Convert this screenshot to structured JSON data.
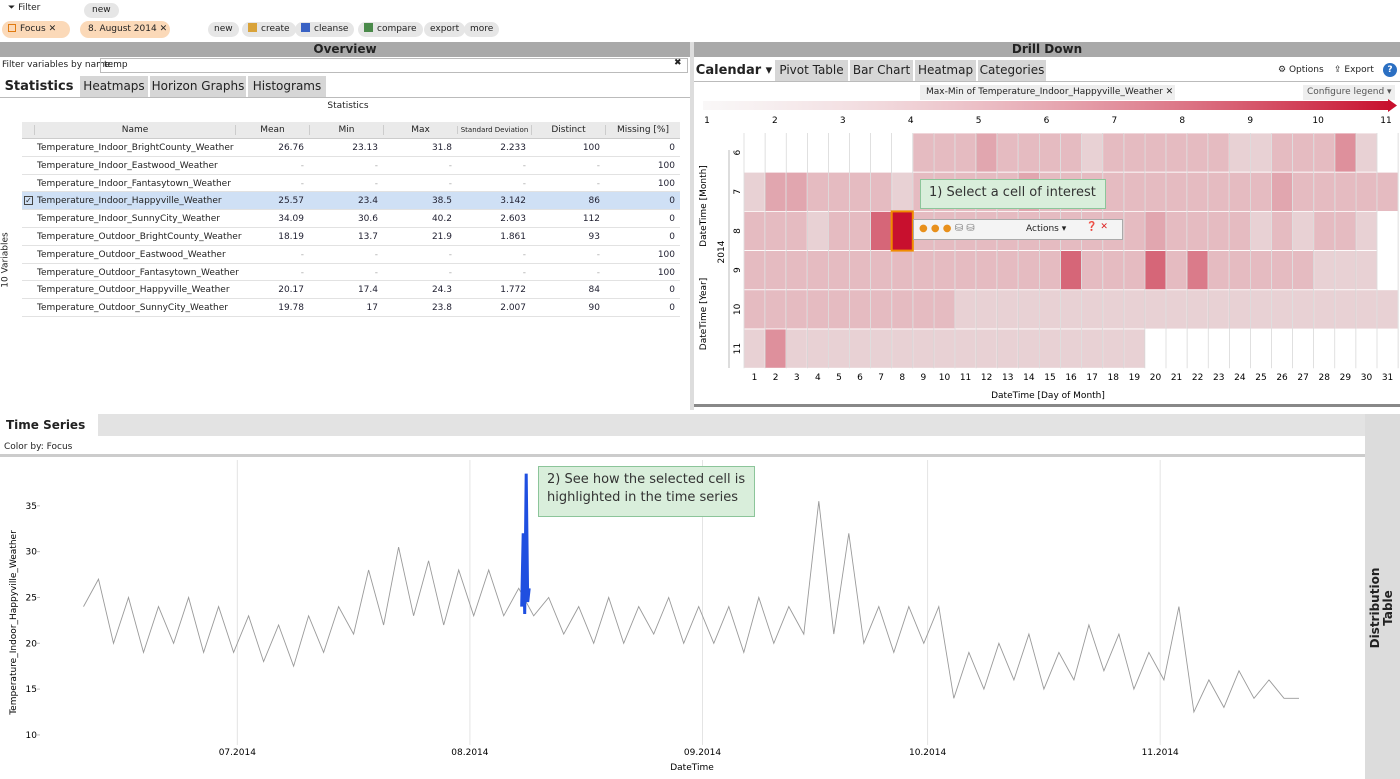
{
  "toolbar": {
    "filter": "Filter",
    "filter_new": "new",
    "chips": [
      "Focus",
      "8. August 2014"
    ],
    "buttons": [
      "new",
      "create",
      "cleanse",
      "compare",
      "export",
      "more"
    ]
  },
  "overview": {
    "title": "Overview",
    "filter_label": "Filter variables by name:",
    "filter_value": "temp",
    "tabs": [
      "Statistics",
      "Heatmaps",
      "Horizon Graphs",
      "Histograms"
    ],
    "table_title": "Statistics",
    "side_label": "10 Variables",
    "columns": [
      "Name",
      "Mean",
      "Min",
      "Max",
      "Standard Deviation",
      "Distinct",
      "Missing [%]"
    ],
    "selected_row": 3,
    "rows": [
      [
        "Temperature_Indoor_BrightCounty_Weather",
        26.76,
        23.13,
        31.8,
        2.233,
        100,
        0
      ],
      [
        "Temperature_Indoor_Eastwood_Weather",
        "-",
        "-",
        "-",
        "-",
        "-",
        100
      ],
      [
        "Temperature_Indoor_Fantasytown_Weather",
        "-",
        "-",
        "-",
        "-",
        "-",
        100
      ],
      [
        "Temperature_Indoor_Happyville_Weather",
        25.57,
        23.4,
        38.5,
        3.142,
        86,
        0
      ],
      [
        "Temperature_Indoor_SunnyCity_Weather",
        34.09,
        30.6,
        40.2,
        2.603,
        112,
        0
      ],
      [
        "Temperature_Outdoor_BrightCounty_Weather",
        18.19,
        13.7,
        21.9,
        1.861,
        93,
        0
      ],
      [
        "Temperature_Outdoor_Eastwood_Weather",
        "-",
        "-",
        "-",
        "-",
        "-",
        100
      ],
      [
        "Temperature_Outdoor_Fantasytown_Weather",
        "-",
        "-",
        "-",
        "-",
        "-",
        100
      ],
      [
        "Temperature_Outdoor_Happyville_Weather",
        20.17,
        17.4,
        24.3,
        1.772,
        84,
        0
      ],
      [
        "Temperature_Outdoor_SunnyCity_Weather",
        19.78,
        17,
        23.8,
        2.007,
        90,
        0
      ]
    ]
  },
  "drilldown": {
    "title": "Drill Down",
    "tabs": [
      "Calendar",
      "Pivot Table",
      "Bar Chart",
      "Heatmap",
      "Categories"
    ],
    "options": "Options",
    "export": "Export",
    "legend": {
      "title": "Max-Min of Temperature_Indoor_Happyville_Weather",
      "configure": "Configure legend",
      "range": [
        1,
        11
      ],
      "ticks": [
        1,
        2,
        3,
        4,
        5,
        6,
        7,
        8,
        9,
        10,
        11
      ],
      "colors": [
        "#ece6e6",
        "#c8102e"
      ]
    },
    "calendar": {
      "year_axis": "DateTime [Year]",
      "month_axis": "DateTime [Month]",
      "year": "2014",
      "months": [
        6,
        7,
        8,
        9,
        10,
        11
      ],
      "days": [
        1,
        2,
        3,
        4,
        5,
        6,
        7,
        8,
        9,
        10,
        11,
        12,
        13,
        14,
        15,
        16,
        17,
        18,
        19,
        20,
        21,
        22,
        23,
        24,
        25,
        26,
        27,
        28,
        29,
        30,
        31
      ],
      "x_axis": "DateTime [Day of Month]",
      "selected_cell": [
        2,
        7
      ],
      "values": [
        [
          null,
          null,
          null,
          null,
          null,
          null,
          null,
          null,
          3,
          3,
          3,
          4,
          3,
          3,
          3,
          3,
          2,
          3,
          3,
          3,
          3,
          3,
          3,
          2,
          2,
          3,
          3,
          3,
          5,
          2,
          null
        ],
        [
          2,
          4,
          4,
          3,
          3,
          3,
          3,
          2,
          3,
          3,
          3,
          3,
          3,
          4,
          3,
          3,
          3,
          3,
          3,
          3,
          3,
          3,
          3,
          3,
          3,
          4,
          3,
          3,
          3,
          3,
          3
        ],
        [
          3,
          3,
          3,
          2,
          3,
          3,
          7,
          11,
          3,
          3,
          3,
          3,
          3,
          3,
          3,
          3,
          3,
          3,
          3,
          4,
          3,
          3,
          3,
          3,
          2,
          3,
          2,
          3,
          3,
          2,
          null
        ],
        [
          3,
          3,
          3,
          3,
          3,
          3,
          3,
          3,
          3,
          3,
          3,
          3,
          3,
          3,
          3,
          7,
          3,
          3,
          3,
          7,
          3,
          6,
          3,
          3,
          3,
          3,
          3,
          2,
          2,
          2,
          null
        ],
        [
          3,
          3,
          3,
          3,
          3,
          3,
          3,
          3,
          3,
          3,
          2,
          2,
          2,
          2,
          2,
          2,
          2,
          2,
          2,
          2,
          2,
          2,
          2,
          2,
          2,
          2,
          2,
          2,
          2,
          2,
          2
        ],
        [
          2,
          5,
          2,
          2,
          2,
          2,
          2,
          2,
          2,
          2,
          2,
          2,
          2,
          2,
          2,
          2,
          2,
          2,
          2,
          null,
          null,
          null,
          null,
          null,
          null,
          null,
          null,
          null,
          null,
          null,
          null
        ]
      ]
    },
    "callout": "1) Select a cell of interest",
    "actions": "Actions"
  },
  "time_series": {
    "type": "line",
    "title": "Time Series",
    "color_by": "Color by: Focus",
    "ylabel": "Temperature_Indoor_Happyville_Weather",
    "xlabel": "DateTime",
    "callout": "2) See how the selected cell is highlighted in the time series",
    "side_panel": "Distribution Table",
    "xlim": [
      3.7,
      180.3
    ],
    "ylim": [
      8.9,
      40
    ],
    "yticks": [
      10,
      15,
      20,
      25,
      30,
      35
    ],
    "xticks": [
      {
        "value": 30,
        "label": "07.2014"
      },
      {
        "value": 61,
        "label": "08.2014"
      },
      {
        "value": 92,
        "label": "09.2014"
      },
      {
        "value": 122,
        "label": "10.2014"
      },
      {
        "value": 153,
        "label": "11.2014"
      }
    ],
    "series": [
      {
        "color": "#9a9a9a",
        "x": [
          9.5,
          11.5,
          13.5,
          15.5,
          17.5,
          19.5,
          21.5,
          23.5,
          25.5,
          27.5,
          29.5,
          31.5,
          33.5,
          35.5,
          37.5,
          39.5,
          41.5,
          43.5,
          45.5,
          47.5,
          49.5,
          51.5,
          53.5,
          55.5,
          57.5,
          59.5,
          61.5,
          63.5,
          65.5,
          67.5,
          69.5,
          71.5,
          73.5,
          75.5,
          77.5,
          79.5,
          81.5,
          83.5,
          85.5,
          87.5,
          89.5,
          91.5,
          93.5,
          95.5,
          97.5,
          99.5,
          101.5,
          103.5,
          105.5,
          107.5,
          109.5,
          111.5,
          113.5,
          115.5,
          117.5,
          119.5,
          121.5,
          123.5,
          125.5,
          127.5,
          129.5,
          131.5,
          133.5,
          135.5,
          137.5,
          139.5,
          141.5,
          143.5,
          145.5,
          147.5,
          149.5,
          151.5,
          153.5,
          155.5,
          157.5,
          159.5,
          161.5,
          163.5,
          165.5,
          167.5,
          169.5,
          171.5
        ],
        "values": [
          24,
          27,
          20,
          25,
          19,
          24,
          20,
          25,
          19,
          24,
          19,
          23,
          18,
          22,
          17.5,
          23,
          19,
          24,
          21,
          28,
          22,
          30.5,
          23,
          29,
          22,
          28,
          23,
          28,
          23,
          26,
          23,
          25,
          21,
          24,
          20,
          25,
          20,
          24,
          21,
          25,
          20,
          24,
          20,
          24,
          19,
          25,
          20,
          24,
          21,
          35.5,
          21,
          32,
          20,
          24,
          19,
          24,
          20,
          24,
          14,
          19,
          15,
          20,
          16,
          21,
          15,
          19,
          16,
          22,
          17,
          21,
          15,
          19,
          16,
          24,
          12.5,
          16,
          13,
          17,
          14,
          16,
          14,
          14
        ]
      },
      {
        "color": "#1f4fe0",
        "x": [
          67.9,
          68.1,
          68.3,
          68.5,
          68.7,
          68.9
        ],
        "values": [
          24,
          32,
          23.2,
          38.5,
          24.5,
          26
        ]
      }
    ]
  }
}
